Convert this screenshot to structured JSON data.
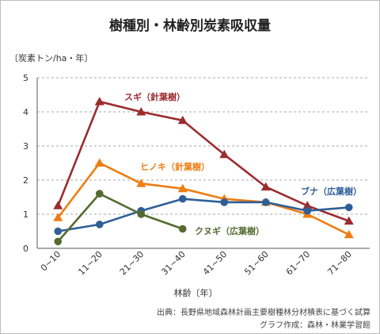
{
  "chart_data": {
    "type": "line",
    "title": "樹種別・林齢別炭素吸収量",
    "ylabel": "〔炭素トン/ha・年〕",
    "xlabel": "林齢〔年〕",
    "categories": [
      "0~10",
      "11~20",
      "21~30",
      "31~40",
      "41~50",
      "51~60",
      "61~70",
      "71~80"
    ],
    "ylim": [
      0,
      5
    ],
    "yticks": [
      "0",
      "1",
      "2",
      "3",
      "4",
      "5"
    ],
    "grid": true,
    "legend": "inline labels",
    "series": [
      {
        "name": "スギ（針葉樹）",
        "color": "#9b2d2f",
        "marker": "triangle",
        "values": [
          1.25,
          4.3,
          4.0,
          3.75,
          2.75,
          1.8,
          1.25,
          0.8
        ]
      },
      {
        "name": "ヒノキ（針葉樹）",
        "color": "#ee7d12",
        "marker": "triangle",
        "values": [
          0.9,
          2.5,
          1.9,
          1.75,
          1.45,
          1.35,
          1.0,
          0.4
        ]
      },
      {
        "name": "ブナ（広葉樹）",
        "color": "#2f5f97",
        "marker": "circle",
        "values": [
          0.5,
          0.7,
          1.1,
          1.45,
          1.35,
          1.35,
          1.1,
          1.2
        ]
      },
      {
        "name": "クヌギ（広葉樹）",
        "color": "#556b2f",
        "marker": "circle",
        "values": [
          0.2,
          1.6,
          1.0,
          0.57,
          null,
          null,
          null,
          null
        ]
      }
    ],
    "source": [
      "出典：長野県地域森林計画主要樹種林分材積表に基づく試算",
      "グラフ作成：森林・林業学習館"
    ]
  }
}
